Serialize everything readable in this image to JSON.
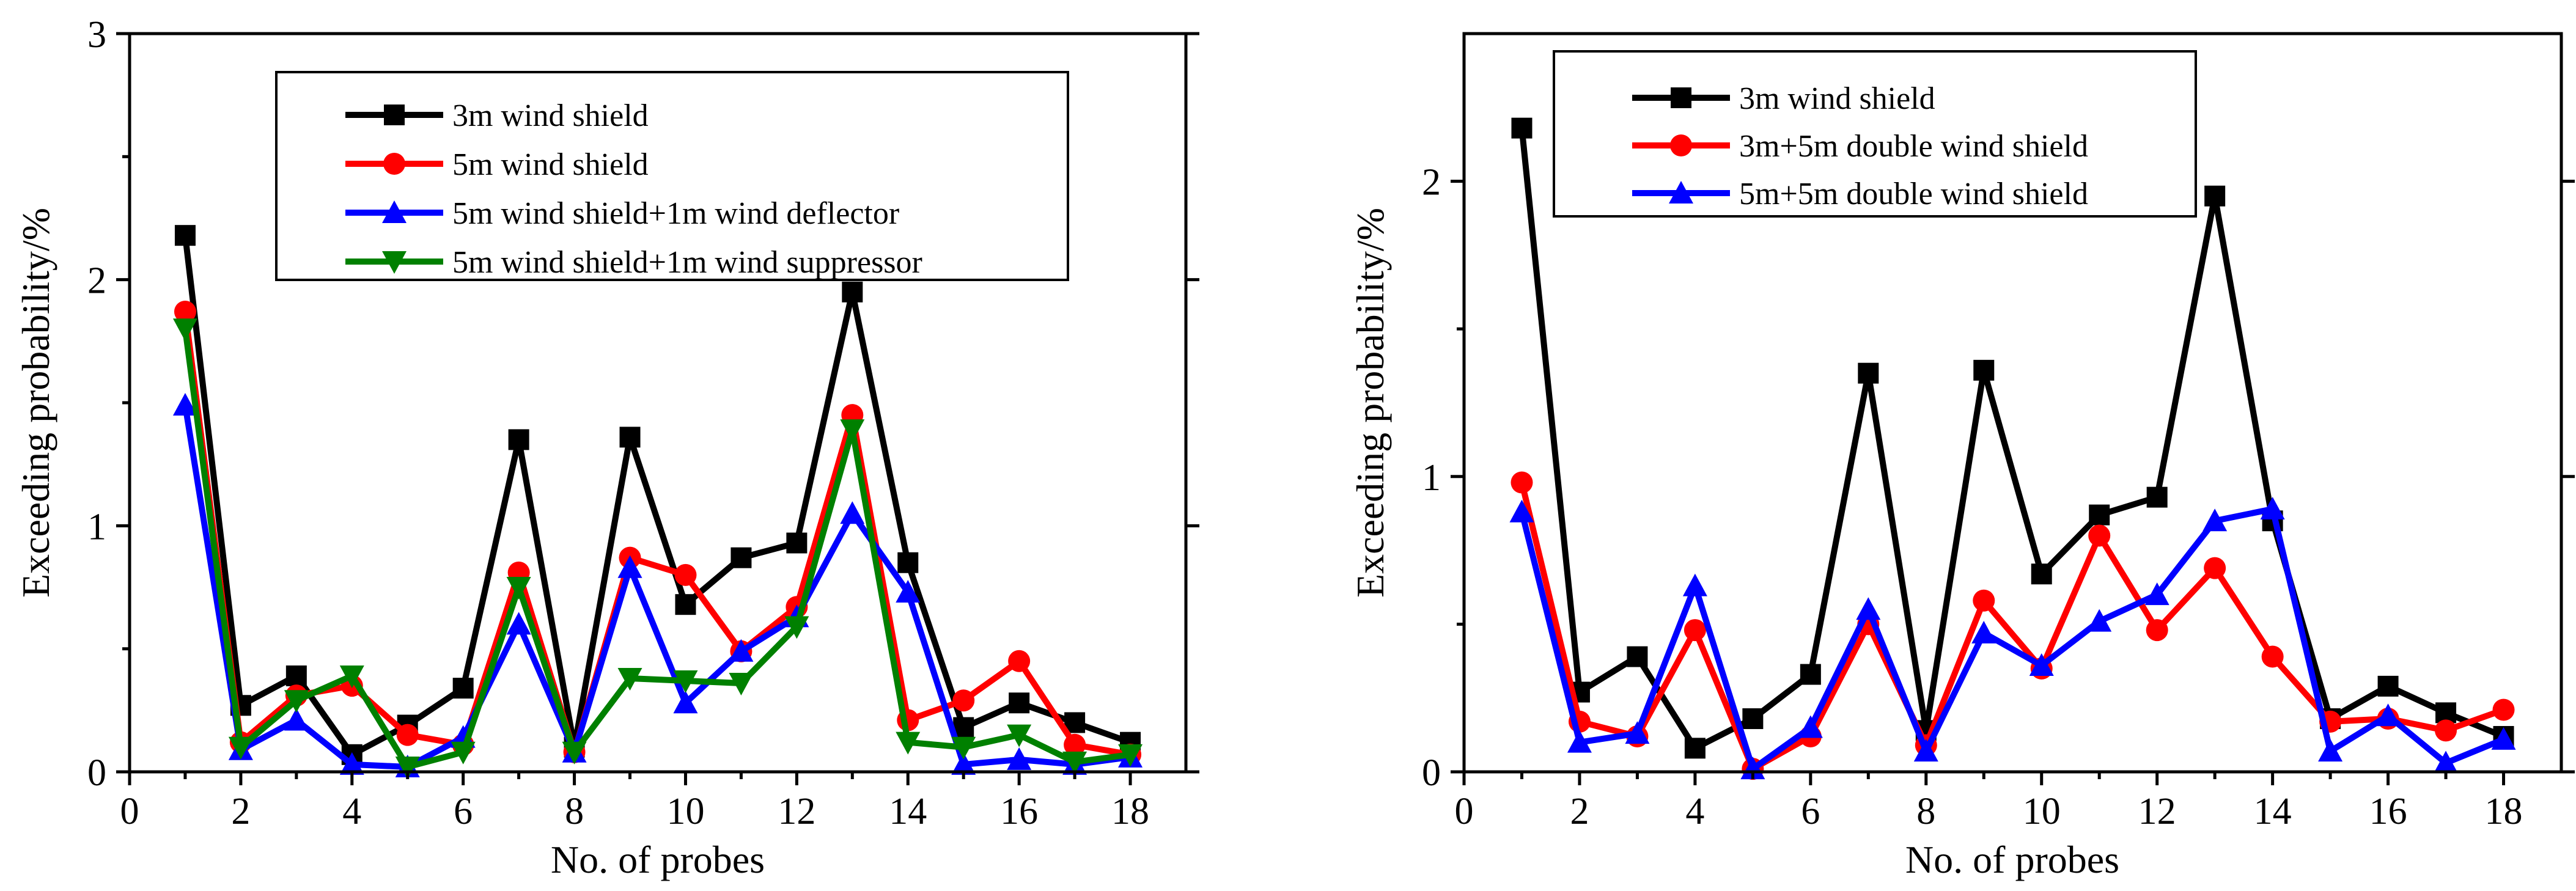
{
  "chart_data": [
    {
      "type": "line",
      "title": "",
      "xlabel": "No. of probes",
      "ylabel": "Exceeding probability/%",
      "xlim": [
        0,
        19
      ],
      "ylim": [
        0,
        3
      ],
      "xticks": [
        0,
        2,
        4,
        6,
        8,
        10,
        12,
        14,
        16,
        18
      ],
      "yticks": [
        0,
        1,
        2,
        3
      ],
      "legend_position": "top-center",
      "x": [
        1,
        2,
        3,
        4,
        5,
        6,
        7,
        8,
        9,
        10,
        11,
        12,
        13,
        14,
        15,
        16,
        17,
        18
      ],
      "series": [
        {
          "name": "3m wind shield",
          "color": "#000000",
          "marker": "square",
          "values": [
            2.18,
            0.27,
            0.39,
            0.07,
            0.19,
            0.34,
            1.35,
            0.1,
            1.36,
            0.68,
            0.87,
            0.93,
            1.95,
            0.85,
            0.18,
            0.28,
            0.2,
            0.12
          ]
        },
        {
          "name": "5m wind shield",
          "color": "#ff0000",
          "marker": "circle",
          "values": [
            1.87,
            0.12,
            0.31,
            0.35,
            0.15,
            0.11,
            0.81,
            0.08,
            0.87,
            0.8,
            0.49,
            0.67,
            1.45,
            0.21,
            0.29,
            0.45,
            0.11,
            0.07
          ]
        },
        {
          "name": "5m wind shield+1m wind deflector",
          "color": "#0000ff",
          "marker": "triangle-up",
          "values": [
            1.49,
            0.09,
            0.21,
            0.03,
            0.02,
            0.14,
            0.6,
            0.08,
            0.83,
            0.28,
            0.49,
            0.63,
            1.05,
            0.73,
            0.03,
            0.05,
            0.03,
            0.06
          ]
        },
        {
          "name": "5m wind shield+1m wind suppressor",
          "color": "#008000",
          "marker": "triangle-down",
          "values": [
            1.8,
            0.1,
            0.29,
            0.39,
            0.02,
            0.08,
            0.75,
            0.08,
            0.38,
            0.37,
            0.36,
            0.59,
            1.39,
            0.12,
            0.1,
            0.15,
            0.04,
            0.07
          ]
        }
      ]
    },
    {
      "type": "line",
      "title": "",
      "xlabel": "No. of probes",
      "ylabel": "Exceeding probability/%",
      "xlim": [
        0,
        19
      ],
      "ylim": [
        0,
        2.5
      ],
      "xticks": [
        0,
        2,
        4,
        6,
        8,
        10,
        12,
        14,
        16,
        18
      ],
      "yticks": [
        0,
        1,
        2
      ],
      "legend_position": "top-left",
      "x": [
        1,
        2,
        3,
        4,
        5,
        6,
        7,
        8,
        9,
        10,
        11,
        12,
        13,
        14,
        15,
        16,
        17,
        18
      ],
      "series": [
        {
          "name": "3m wind shield",
          "color": "#000000",
          "marker": "square",
          "values": [
            2.18,
            0.27,
            0.39,
            0.08,
            0.18,
            0.33,
            1.35,
            0.14,
            1.36,
            0.67,
            0.87,
            0.93,
            1.95,
            0.85,
            0.18,
            0.29,
            0.2,
            0.12
          ]
        },
        {
          "name": "3m+5m double wind shield",
          "color": "#ff0000",
          "marker": "circle",
          "values": [
            0.98,
            0.17,
            0.12,
            0.48,
            0.01,
            0.12,
            0.5,
            0.09,
            0.58,
            0.35,
            0.8,
            0.48,
            0.69,
            0.39,
            0.17,
            0.18,
            0.14,
            0.21
          ]
        },
        {
          "name": "5m+5m double wind shield",
          "color": "#0000ff",
          "marker": "triangle-up",
          "values": [
            0.88,
            0.1,
            0.13,
            0.63,
            0.01,
            0.15,
            0.55,
            0.07,
            0.47,
            0.36,
            0.51,
            0.6,
            0.85,
            0.89,
            0.07,
            0.19,
            0.03,
            0.11
          ]
        }
      ]
    }
  ]
}
